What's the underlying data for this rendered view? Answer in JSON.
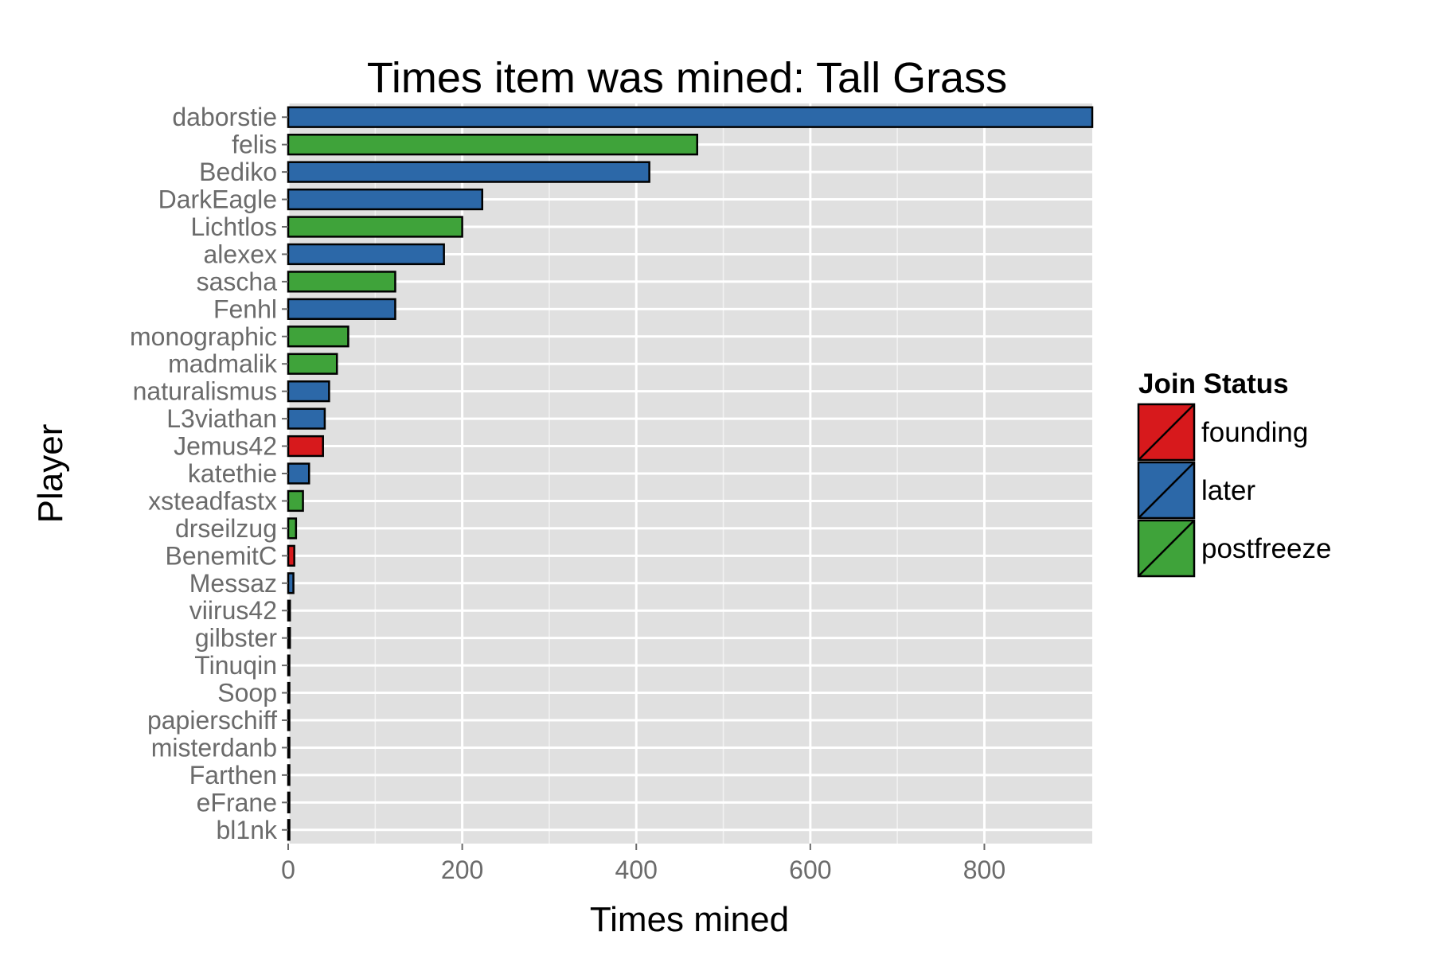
{
  "chart_data": {
    "type": "bar",
    "orientation": "horizontal",
    "title": "Times item was mined: Tall Grass",
    "xlabel": "Times mined",
    "ylabel": "Player",
    "xlim": [
      0,
      924
    ],
    "xticks": [
      0,
      200,
      400,
      600,
      800
    ],
    "grid": true,
    "legend": {
      "title": "Join Status",
      "position": "right",
      "entries": [
        {
          "name": "founding",
          "color": "#d7191c"
        },
        {
          "name": "later",
          "color": "#2c68a8"
        },
        {
          "name": "postfreeze",
          "color": "#3fa33a"
        }
      ]
    },
    "bars": [
      {
        "player": "daborstie",
        "value": 924,
        "status": "later"
      },
      {
        "player": "felis",
        "value": 470,
        "status": "postfreeze"
      },
      {
        "player": "Bediko",
        "value": 415,
        "status": "later"
      },
      {
        "player": "DarkEagle",
        "value": 223,
        "status": "later"
      },
      {
        "player": "Lichtlos",
        "value": 200,
        "status": "postfreeze"
      },
      {
        "player": "alexex",
        "value": 179,
        "status": "later"
      },
      {
        "player": "sascha",
        "value": 123,
        "status": "postfreeze"
      },
      {
        "player": "Fenhl",
        "value": 123,
        "status": "later"
      },
      {
        "player": "monographic",
        "value": 69,
        "status": "postfreeze"
      },
      {
        "player": "madmalik",
        "value": 56,
        "status": "postfreeze"
      },
      {
        "player": "naturalismus",
        "value": 47,
        "status": "later"
      },
      {
        "player": "L3viathan",
        "value": 42,
        "status": "later"
      },
      {
        "player": "Jemus42",
        "value": 40,
        "status": "founding"
      },
      {
        "player": "katethie",
        "value": 24,
        "status": "later"
      },
      {
        "player": "xsteadfastx",
        "value": 17,
        "status": "postfreeze"
      },
      {
        "player": "drseilzug",
        "value": 9,
        "status": "postfreeze"
      },
      {
        "player": "BenemitC",
        "value": 7,
        "status": "founding"
      },
      {
        "player": "Messaz",
        "value": 6,
        "status": "later"
      },
      {
        "player": "viirus42",
        "value": 2,
        "status": "later"
      },
      {
        "player": "gilbster",
        "value": 2,
        "status": "later"
      },
      {
        "player": "Tinuqin",
        "value": 1,
        "status": "later"
      },
      {
        "player": "Soop",
        "value": 1,
        "status": "later"
      },
      {
        "player": "papierschiff",
        "value": 1,
        "status": "later"
      },
      {
        "player": "misterdanb",
        "value": 1,
        "status": "later"
      },
      {
        "player": "Farthen",
        "value": 1,
        "status": "later"
      },
      {
        "player": "eFrane",
        "value": 1,
        "status": "later"
      },
      {
        "player": "bl1nk",
        "value": 1,
        "status": "later"
      }
    ]
  }
}
